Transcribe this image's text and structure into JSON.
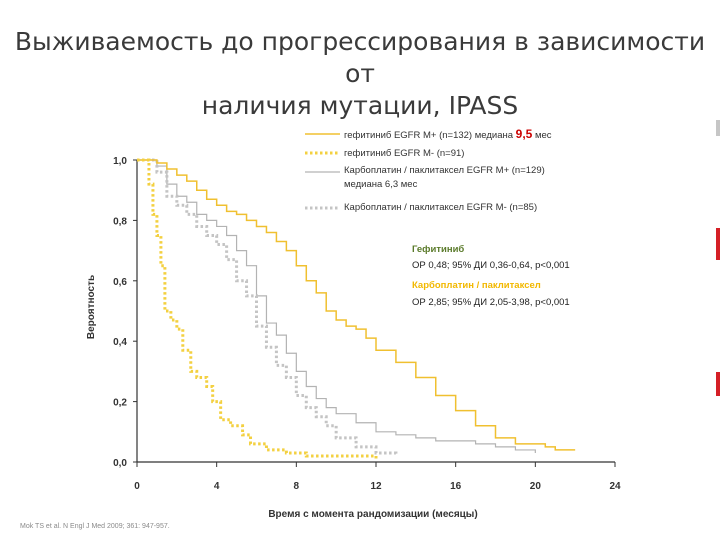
{
  "slide": {
    "title_line1": "Выживаемость до прогрессирования в зависимости от",
    "title_line2": "наличия мутации, IPASS",
    "source": "Mok TS et al. N Engl J Med 2009; 361: 947-957."
  },
  "colors": {
    "gef_mut_pos": "#f0c030",
    "gef_mut_neg": "#f3d040",
    "carbo_mut_pos": "#b3b3b3",
    "carbo_mut_neg": "#c4c4c4",
    "gef_header": "#5a7a2a",
    "carbo_header": "#f2b800",
    "highlight": "#cc0000",
    "axis": "#333333",
    "edge_marks": [
      "#c6c6c6",
      "#d51f26",
      "#d51f26"
    ]
  },
  "legend": {
    "items": [
      {
        "prefix": "гефитиниб EGFR M+ (n=132) медиана ",
        "highlight": "9,5",
        "suffix": " мес"
      },
      {
        "prefix": "гефитиниб EGFR M- (n=91)",
        "highlight": "",
        "suffix": ""
      },
      {
        "prefix": "Карбоплатин / паклитаксел EGFR M+ (n=129)",
        "highlight": "",
        "suffix": "",
        "line2": "медиана 6,3 мес"
      },
      {
        "prefix": "Карбоплатин / паклитаксел EGFR M- (n=85)",
        "highlight": "",
        "suffix": ""
      }
    ]
  },
  "annotations": {
    "gef_header": "Гефитиниб",
    "gef_stats": "ОР 0,48; 95% ДИ 0,36-0,64, p<0,001",
    "carbo_header": "Карбоплатин / паклитаксел",
    "carbo_stats": "ОР 2,85; 95% ДИ 2,05-3,98, p<0,001"
  },
  "chart_data": {
    "type": "line",
    "xlabel": "Время с момента рандомизации (месяцы)",
    "ylabel": "Вероятность",
    "xlim": [
      0,
      24
    ],
    "ylim": [
      0,
      1
    ],
    "x_ticks": [
      "0",
      "4",
      "8",
      "12",
      "16",
      "20",
      "24"
    ],
    "y_ticks": [
      "0,0",
      "0,2",
      "0,4",
      "0,6",
      "0,8",
      "1,0"
    ],
    "series": [
      {
        "name": "гефитиниб EGFR M+ (n=132)",
        "style": "solid",
        "points": [
          [
            0,
            1.0
          ],
          [
            1,
            0.99
          ],
          [
            1.5,
            0.97
          ],
          [
            2,
            0.95
          ],
          [
            2.5,
            0.93
          ],
          [
            3,
            0.9
          ],
          [
            3.5,
            0.87
          ],
          [
            4,
            0.85
          ],
          [
            4.5,
            0.83
          ],
          [
            5,
            0.82
          ],
          [
            5.5,
            0.8
          ],
          [
            6,
            0.78
          ],
          [
            6.5,
            0.76
          ],
          [
            7,
            0.73
          ],
          [
            7.5,
            0.7
          ],
          [
            8,
            0.65
          ],
          [
            8.5,
            0.6
          ],
          [
            9,
            0.56
          ],
          [
            9.5,
            0.5
          ],
          [
            10,
            0.47
          ],
          [
            10.5,
            0.45
          ],
          [
            11,
            0.44
          ],
          [
            11.5,
            0.41
          ],
          [
            12,
            0.37
          ],
          [
            13,
            0.33
          ],
          [
            14,
            0.28
          ],
          [
            15,
            0.22
          ],
          [
            16,
            0.17
          ],
          [
            17,
            0.12
          ],
          [
            18,
            0.08
          ],
          [
            19,
            0.06
          ],
          [
            20,
            0.06
          ],
          [
            20.5,
            0.05
          ],
          [
            21,
            0.04
          ],
          [
            22,
            0.04
          ]
        ]
      },
      {
        "name": "гефитиниб EGFR M- (n=91)",
        "style": "dotted",
        "points": [
          [
            0,
            1.0
          ],
          [
            0.6,
            0.92
          ],
          [
            0.8,
            0.82
          ],
          [
            1,
            0.75
          ],
          [
            1.2,
            0.65
          ],
          [
            1.4,
            0.5
          ],
          [
            1.7,
            0.47
          ],
          [
            2,
            0.44
          ],
          [
            2.3,
            0.37
          ],
          [
            2.7,
            0.3
          ],
          [
            3,
            0.28
          ],
          [
            3.5,
            0.25
          ],
          [
            3.8,
            0.2
          ],
          [
            4.2,
            0.14
          ],
          [
            4.7,
            0.12
          ],
          [
            5.3,
            0.09
          ],
          [
            5.7,
            0.06
          ],
          [
            6.5,
            0.04
          ],
          [
            7.5,
            0.03
          ],
          [
            8.5,
            0.02
          ],
          [
            11,
            0.02
          ],
          [
            12,
            0.01
          ]
        ]
      },
      {
        "name": "Карбоплатин / паклитаксел EGFR M+ (n=129)",
        "style": "solid",
        "points": [
          [
            0,
            1.0
          ],
          [
            1,
            0.98
          ],
          [
            1.5,
            0.92
          ],
          [
            2,
            0.88
          ],
          [
            2.5,
            0.86
          ],
          [
            3,
            0.82
          ],
          [
            3.5,
            0.8
          ],
          [
            4,
            0.78
          ],
          [
            4.5,
            0.75
          ],
          [
            5,
            0.7
          ],
          [
            5.5,
            0.65
          ],
          [
            6,
            0.55
          ],
          [
            6.5,
            0.46
          ],
          [
            7,
            0.42
          ],
          [
            7.5,
            0.36
          ],
          [
            8,
            0.3
          ],
          [
            8.5,
            0.25
          ],
          [
            9,
            0.21
          ],
          [
            9.5,
            0.18
          ],
          [
            10,
            0.16
          ],
          [
            11,
            0.13
          ],
          [
            12,
            0.1
          ],
          [
            13,
            0.09
          ],
          [
            14,
            0.08
          ],
          [
            15,
            0.07
          ],
          [
            17,
            0.06
          ],
          [
            18,
            0.05
          ],
          [
            19,
            0.04
          ],
          [
            20,
            0.03
          ]
        ]
      },
      {
        "name": "Карбоплатин / паклитаксел EGFR M- (n=85)",
        "style": "dotted",
        "points": [
          [
            0,
            1.0
          ],
          [
            1,
            0.96
          ],
          [
            1.5,
            0.88
          ],
          [
            2,
            0.85
          ],
          [
            2.5,
            0.82
          ],
          [
            3,
            0.78
          ],
          [
            3.5,
            0.75
          ],
          [
            4,
            0.72
          ],
          [
            4.5,
            0.67
          ],
          [
            5,
            0.6
          ],
          [
            5.5,
            0.55
          ],
          [
            6,
            0.45
          ],
          [
            6.5,
            0.38
          ],
          [
            7,
            0.32
          ],
          [
            7.5,
            0.28
          ],
          [
            8,
            0.22
          ],
          [
            8.5,
            0.18
          ],
          [
            9,
            0.15
          ],
          [
            9.5,
            0.12
          ],
          [
            10,
            0.08
          ],
          [
            11,
            0.05
          ],
          [
            12,
            0.03
          ],
          [
            13,
            0.02
          ]
        ]
      }
    ]
  }
}
